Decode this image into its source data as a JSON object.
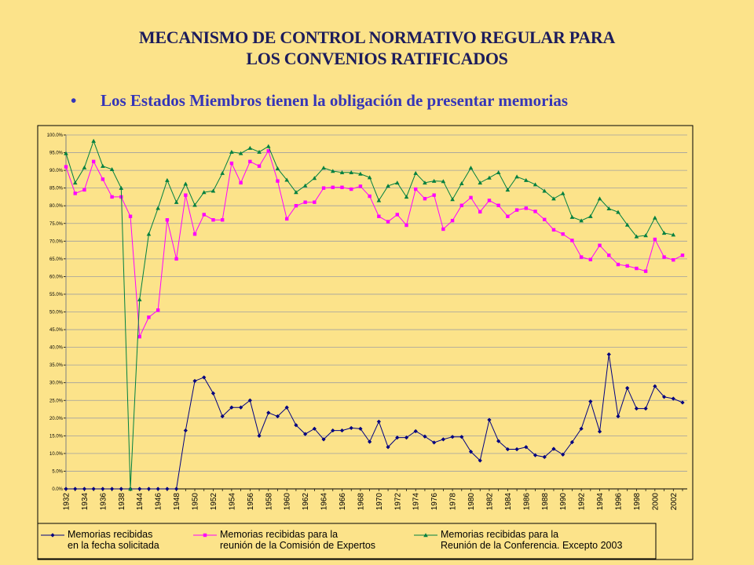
{
  "title": "MECANISMO DE CONTROL NORMATIVO REGULAR PARA\nLOS CONVENIOS RATIFICADOS",
  "subtitle": "Los Estados Miembros tienen la obligación de presentar memorias",
  "chart_data": {
    "type": "line",
    "categories": [
      "1932",
      null,
      "1934",
      null,
      "1936",
      null,
      "1938",
      null,
      "1944",
      null,
      "1946",
      null,
      "1948",
      null,
      "1950",
      null,
      "1952",
      null,
      "1954",
      null,
      "1956",
      null,
      "1958",
      null,
      "1960",
      null,
      "1962",
      null,
      "1964",
      null,
      "1966",
      null,
      "1968",
      null,
      "1970",
      null,
      "1972",
      null,
      "1974",
      null,
      "1976",
      null,
      "1978",
      null,
      "1980",
      null,
      "1982",
      null,
      "1984",
      null,
      "1986",
      null,
      "1988",
      null,
      "1990",
      null,
      "1992",
      null,
      "1994",
      null,
      "1996",
      null,
      "1998",
      null,
      "2000",
      null,
      "2002",
      null
    ],
    "ylim": [
      0,
      100
    ],
    "yticks": [
      {
        "value": 0,
        "label": "0.0%"
      },
      {
        "value": 5,
        "label": "5.0%"
      },
      {
        "value": 10,
        "label": "10.0%"
      },
      {
        "value": 15,
        "label": "15.0%"
      },
      {
        "value": 20,
        "label": "20.0%"
      },
      {
        "value": 25,
        "label": "25.0%"
      },
      {
        "value": 30,
        "label": "30.0%"
      },
      {
        "value": 35,
        "label": "35.0%"
      },
      {
        "value": 40,
        "label": "40.0%"
      },
      {
        "value": 45,
        "label": "45.0%"
      },
      {
        "value": 50,
        "label": "50.0%"
      },
      {
        "value": 55,
        "label": "55.0%"
      },
      {
        "value": 60,
        "label": "60.0%"
      },
      {
        "value": 65,
        "label": "65.0%"
      },
      {
        "value": 70,
        "label": "70.0%"
      },
      {
        "value": 75,
        "label": "75.0%"
      },
      {
        "value": 80,
        "label": "80.0%"
      },
      {
        "value": 85,
        "label": "85.0%"
      },
      {
        "value": 90,
        "label": "90.0%"
      },
      {
        "value": 95,
        "label": "95.0%"
      },
      {
        "value": 100,
        "label": "100.0%"
      }
    ],
    "grid": true,
    "legend": "bottom",
    "series": [
      {
        "name": "Memorias recibidas\nen la fecha solicitada",
        "color": "#000080",
        "marker": "diamond",
        "values": [
          0,
          0,
          0,
          0,
          0,
          0,
          0,
          0,
          0,
          0,
          0,
          0,
          0,
          16.5,
          30.5,
          31.5,
          27,
          20.5,
          23,
          23,
          25,
          15,
          21.5,
          20.5,
          23,
          18,
          15.5,
          17,
          14,
          16.5,
          16.5,
          17.2,
          17,
          13.3,
          19,
          11.8,
          14.5,
          14.5,
          16.3,
          14.8,
          13.1,
          14,
          14.7,
          14.7,
          10.5,
          8,
          19.5,
          13.5,
          11.2,
          11.2,
          11.8,
          9.5,
          9,
          11.3,
          9.7,
          13.2,
          17,
          24.7,
          16.2,
          38,
          20.5,
          28.5,
          22.7,
          22.7,
          29,
          26,
          25.5,
          24.4
        ]
      },
      {
        "name": "Memorias recibidas para la\nreunión de la Comisión de Expertos",
        "color": "#ff00ff",
        "marker": "square",
        "values": [
          91,
          83.5,
          84.5,
          92.5,
          87.5,
          82.5,
          82.5,
          77,
          43,
          48.5,
          50.5,
          76,
          65,
          83,
          72,
          77.5,
          76,
          76,
          92,
          86.5,
          92.5,
          91.2,
          95.5,
          87,
          76.3,
          80,
          81,
          81,
          85,
          85.2,
          85.2,
          84.7,
          85.5,
          82.7,
          77,
          75.5,
          77.5,
          74.5,
          84.7,
          82,
          83,
          73.4,
          75.8,
          80.1,
          82.3,
          78.3,
          81.5,
          80.1,
          77,
          78.8,
          79.3,
          78.4,
          76.1,
          73.2,
          72,
          70.2,
          65.5,
          64.8,
          68.8,
          66,
          63.4,
          63,
          62.3,
          61.5,
          70.5,
          65.5,
          64.7,
          66
        ]
      },
      {
        "name": "Memorias recibidas para la\nReunión de la Conferencia. Excepto 2003",
        "color": "#008040",
        "marker": "triangle",
        "values": [
          94.8,
          86.5,
          90.8,
          98.3,
          91.2,
          90.3,
          85,
          0,
          53.5,
          72,
          79.3,
          87.2,
          81,
          86.2,
          80.2,
          83.8,
          84.2,
          89.2,
          95.2,
          94.8,
          96.3,
          95.2,
          96.8,
          90.5,
          87.3,
          83.8,
          85.7,
          87.8,
          90.7,
          89.8,
          89.4,
          89.4,
          89,
          88,
          81.5,
          85.6,
          86.5,
          82.5,
          89.2,
          86.5,
          87,
          86.9,
          81.8,
          86.3,
          90.7,
          86.5,
          87.9,
          89.4,
          84.5,
          88.2,
          87.2,
          86,
          84.2,
          82,
          83.5,
          76.8,
          75.8,
          77,
          82,
          79.2,
          78.2,
          74.6,
          71.3,
          71.6,
          76.6,
          72.3,
          71.8,
          null
        ]
      }
    ]
  }
}
